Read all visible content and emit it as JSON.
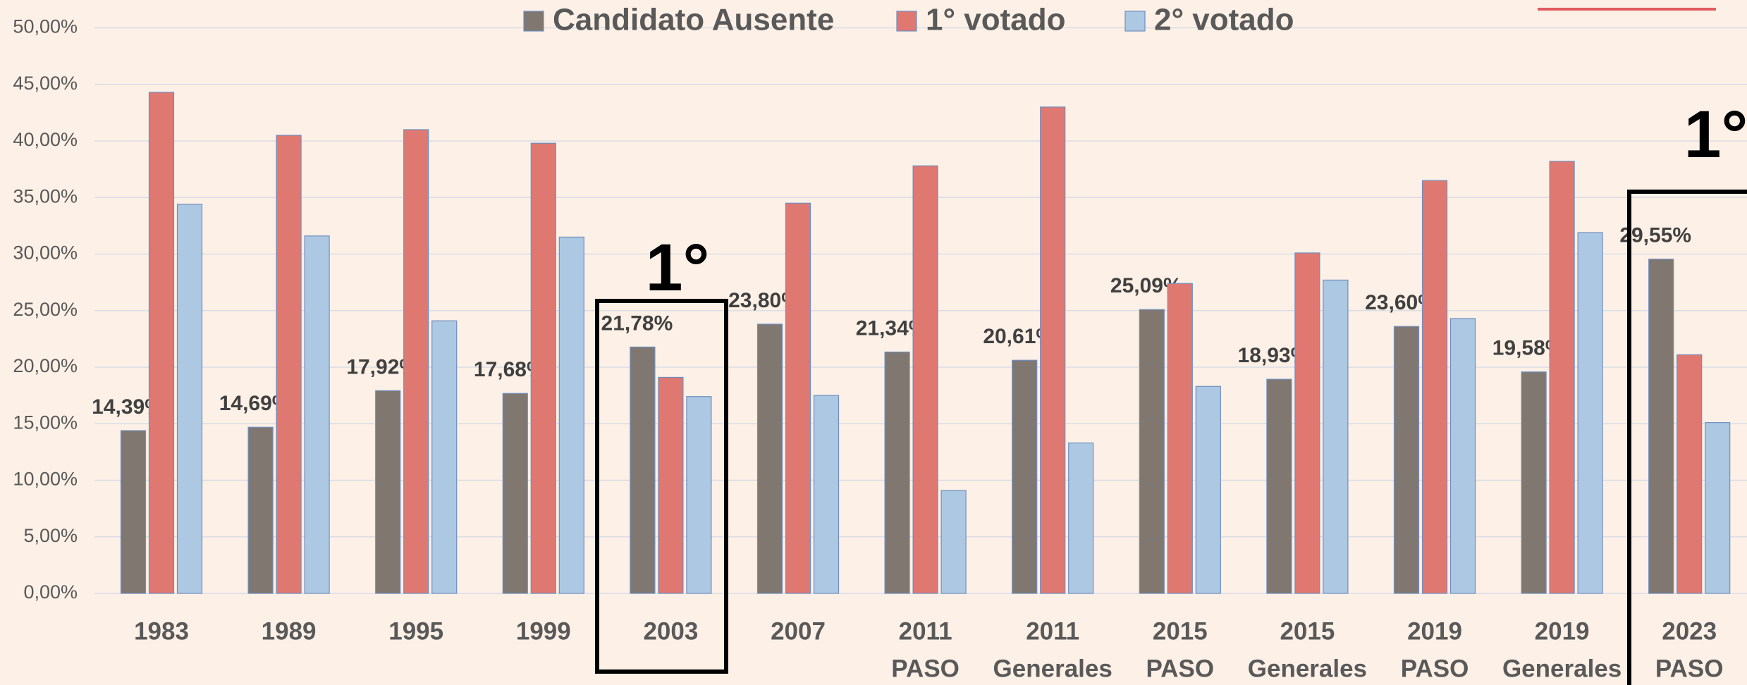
{
  "chart_data": {
    "type": "bar",
    "categories": [
      [
        "1983"
      ],
      [
        "1989"
      ],
      [
        "1995"
      ],
      [
        "1999"
      ],
      [
        "2003"
      ],
      [
        "2007"
      ],
      [
        "2011",
        "PASO"
      ],
      [
        "2011",
        "Generales"
      ],
      [
        "2015",
        "PASO"
      ],
      [
        "2015",
        "Generales"
      ],
      [
        "2019",
        "PASO"
      ],
      [
        "2019",
        "Generales"
      ],
      [
        "2023",
        "PASO"
      ]
    ],
    "series": [
      {
        "name": "Candidato Ausente",
        "color": "#7f7770",
        "values": [
          14.39,
          14.69,
          17.92,
          17.68,
          21.78,
          23.8,
          21.34,
          20.61,
          25.09,
          18.93,
          23.6,
          19.58,
          29.55
        ],
        "value_labels": [
          "14,39%",
          "14,69%",
          "17,92%",
          "17,68%",
          "21,78%",
          "23,80%",
          "21,34%",
          "20,61%",
          "25,09%",
          "18,93%",
          "23,60%",
          "19,58%",
          "29,55%"
        ]
      },
      {
        "name": "1° votado",
        "color": "#e07872",
        "values": [
          44.3,
          40.5,
          41.0,
          39.8,
          19.1,
          34.5,
          37.8,
          43.0,
          27.4,
          30.1,
          36.5,
          38.2,
          21.1
        ]
      },
      {
        "name": "2° votado",
        "color": "#adc8e2",
        "values": [
          34.4,
          31.6,
          24.1,
          31.5,
          17.4,
          17.5,
          9.1,
          13.3,
          18.3,
          27.7,
          24.3,
          31.9,
          15.1
        ]
      }
    ],
    "ylim": [
      0,
      50
    ],
    "yticks": [
      {
        "value": 0,
        "label": "0,00%"
      },
      {
        "value": 5,
        "label": "5,00%"
      },
      {
        "value": 10,
        "label": "10,00%"
      },
      {
        "value": 15,
        "label": "15,00%"
      },
      {
        "value": 20,
        "label": "20,00%"
      },
      {
        "value": 25,
        "label": "25,00%"
      },
      {
        "value": 30,
        "label": "30,00%"
      },
      {
        "value": 35,
        "label": "35,00%"
      },
      {
        "value": 40,
        "label": "40,00%"
      },
      {
        "value": 45,
        "label": "45,00%"
      },
      {
        "value": 50,
        "label": "50,00%"
      }
    ],
    "grid": true,
    "legend": "top",
    "annotations": [
      "1°",
      "1°"
    ]
  }
}
